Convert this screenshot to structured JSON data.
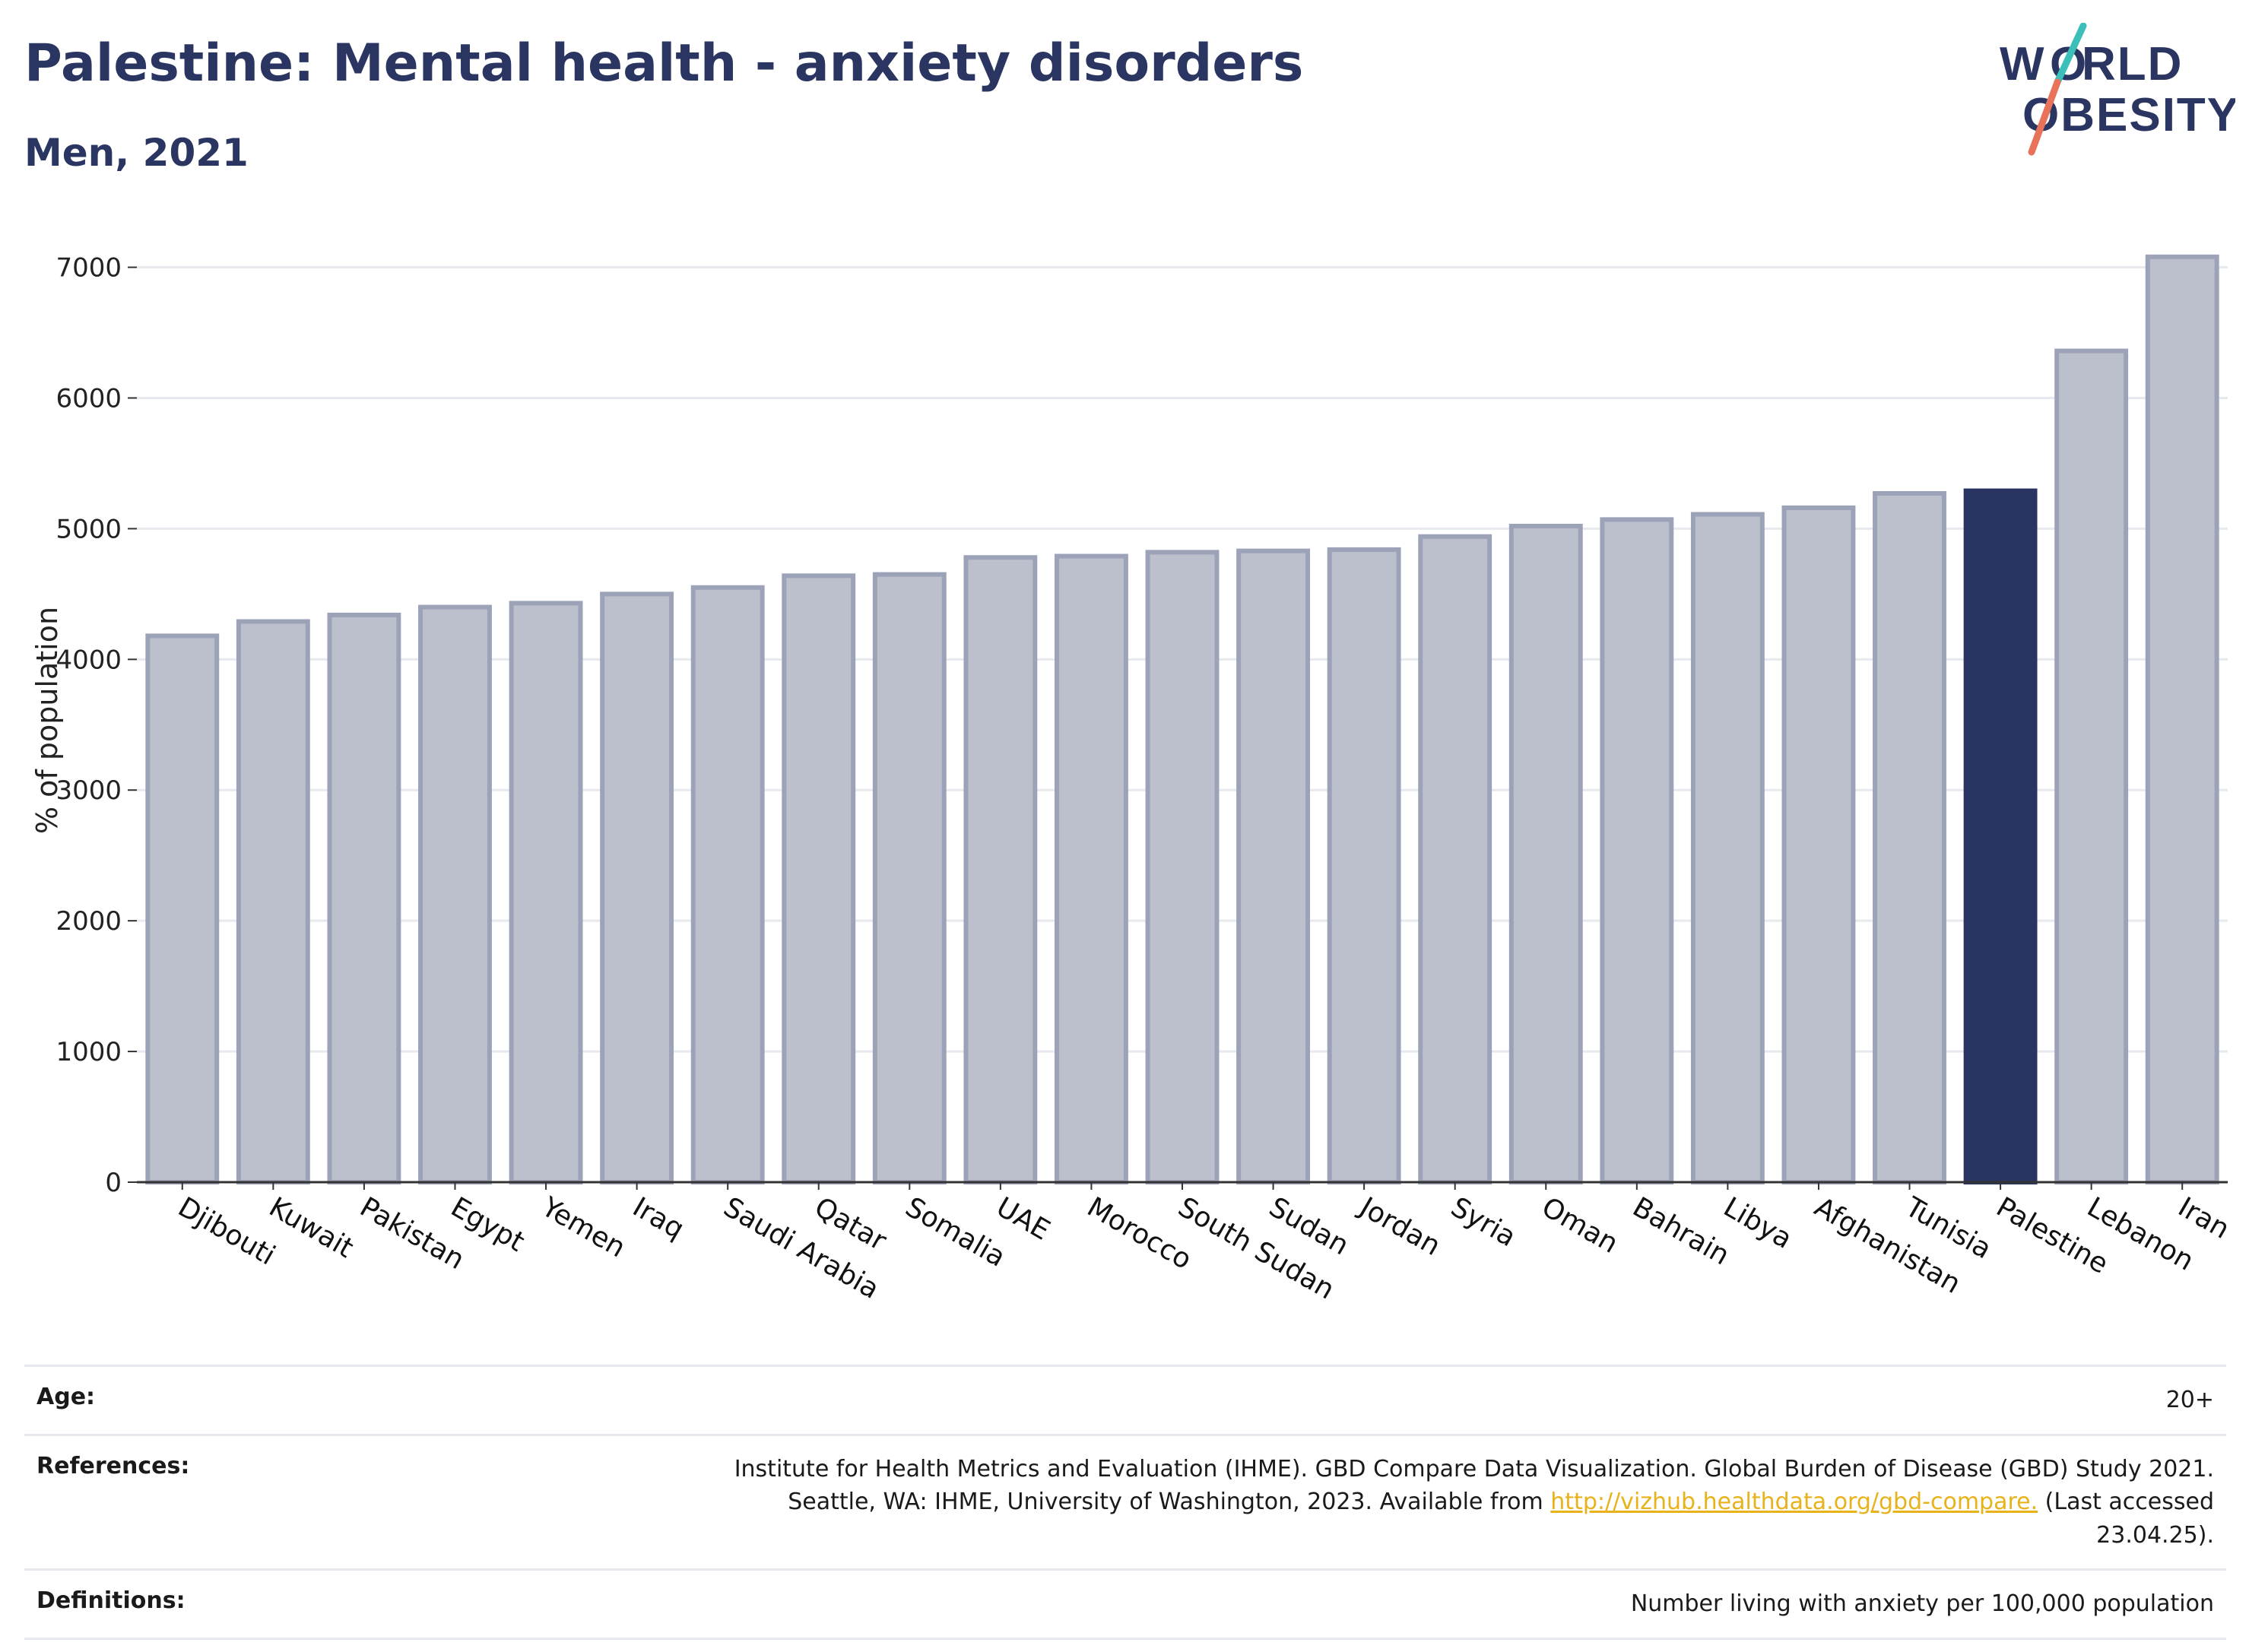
{
  "header": {
    "title": "Palestine: Mental health - anxiety disorders",
    "subtitle": "Men, 2021"
  },
  "logo": {
    "line1": "WORLD",
    "line2": "OBESITY",
    "slash_colors": [
      "#3cbfb8",
      "#e8735a"
    ],
    "text_color": "#2a3561"
  },
  "colors": {
    "highlight": "#293462",
    "bar": "#bcc0cd",
    "bar_border": "#9ca2b8",
    "axis": "#333333",
    "grid": "#e6e9ed"
  },
  "chart_data": {
    "type": "bar",
    "title": "Palestine: Mental health - anxiety disorders",
    "subtitle": "Men, 2021",
    "ylabel": "% of population",
    "xlabel": "",
    "ylim": [
      0,
      7300
    ],
    "yticks": [
      0,
      1000,
      2000,
      3000,
      4000,
      5000,
      6000,
      7000
    ],
    "grid": true,
    "highlight": "Palestine",
    "categories": [
      "Djibouti",
      "Kuwait",
      "Pakistan",
      "Egypt",
      "Yemen",
      "Iraq",
      "Saudi Arabia",
      "Qatar",
      "Somalia",
      "UAE",
      "Morocco",
      "South Sudan",
      "Sudan",
      "Jordan",
      "Syria",
      "Oman",
      "Bahrain",
      "Libya",
      "Afghanistan",
      "Tunisia",
      "Palestine",
      "Lebanon",
      "Iran"
    ],
    "values": [
      4180,
      4290,
      4340,
      4400,
      4430,
      4500,
      4550,
      4640,
      4650,
      4780,
      4790,
      4820,
      4830,
      4840,
      4940,
      5020,
      5070,
      5110,
      5160,
      5270,
      5290,
      6360,
      7080
    ]
  },
  "meta": {
    "age_label": "Age:",
    "age_value": "20+",
    "references_label": "References:",
    "references_line1": "Institute for Health Metrics and Evaluation (IHME). GBD Compare Data Visualization. Global Burden of Disease (GBD) Study 2021.",
    "references_line2_pre": "Seattle, WA: IHME, University of Washington, 2023. Available from ",
    "references_link": "http://vizhub.healthdata.org/gbd-compare.",
    "references_line2_post": " (Last accessed",
    "references_line3": "23.04.25).",
    "definitions_label": "Definitions:",
    "definitions_value": "Number living with anxiety per 100,000 population"
  }
}
